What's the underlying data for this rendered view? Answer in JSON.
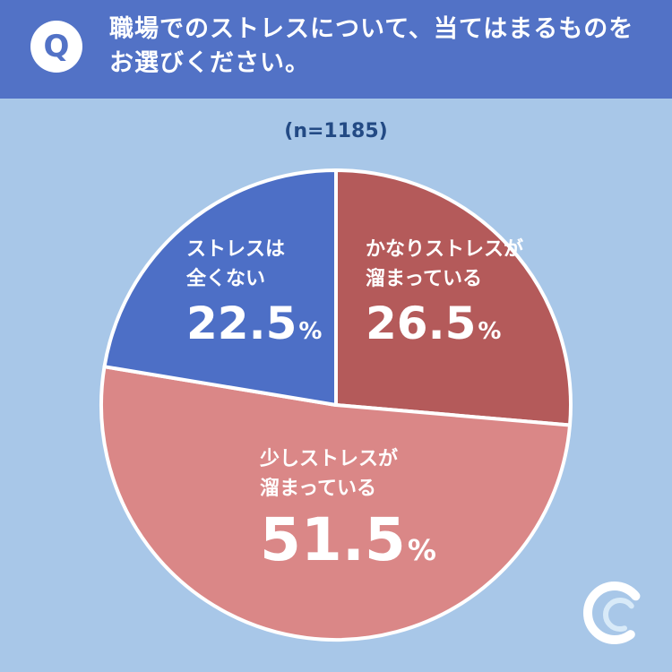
{
  "header": {
    "badge": "Q",
    "question_line1": "職場でのストレスについて、当てはまるものを",
    "question_line2": "お選びください。"
  },
  "colors": {
    "background": "#a8c7e8",
    "header": "#5272c6",
    "text_dark": "#234a84",
    "very_stressed": "#b45a5a",
    "somewhat_stressed": "#da8787",
    "not_stressed": "#4d6fc6"
  },
  "chart_data": {
    "type": "pie",
    "sample_label": "(n=1185)",
    "slices": [
      {
        "line1": "かなりストレスが",
        "line2": "溜まっている",
        "value": 26.5,
        "value_text": "26.5",
        "unit": "%",
        "color": "#b45a5a"
      },
      {
        "line1": "少しストレスが",
        "line2": "溜まっている",
        "value": 51.5,
        "value_text": "51.5",
        "unit": "%",
        "color": "#da8787"
      },
      {
        "line1": "ストレスは",
        "line2": "全くない",
        "value": 22.5,
        "value_text": "22.5",
        "unit": "%",
        "color": "#4d6fc6"
      }
    ]
  },
  "logo_icon": "brand-logo-icon"
}
